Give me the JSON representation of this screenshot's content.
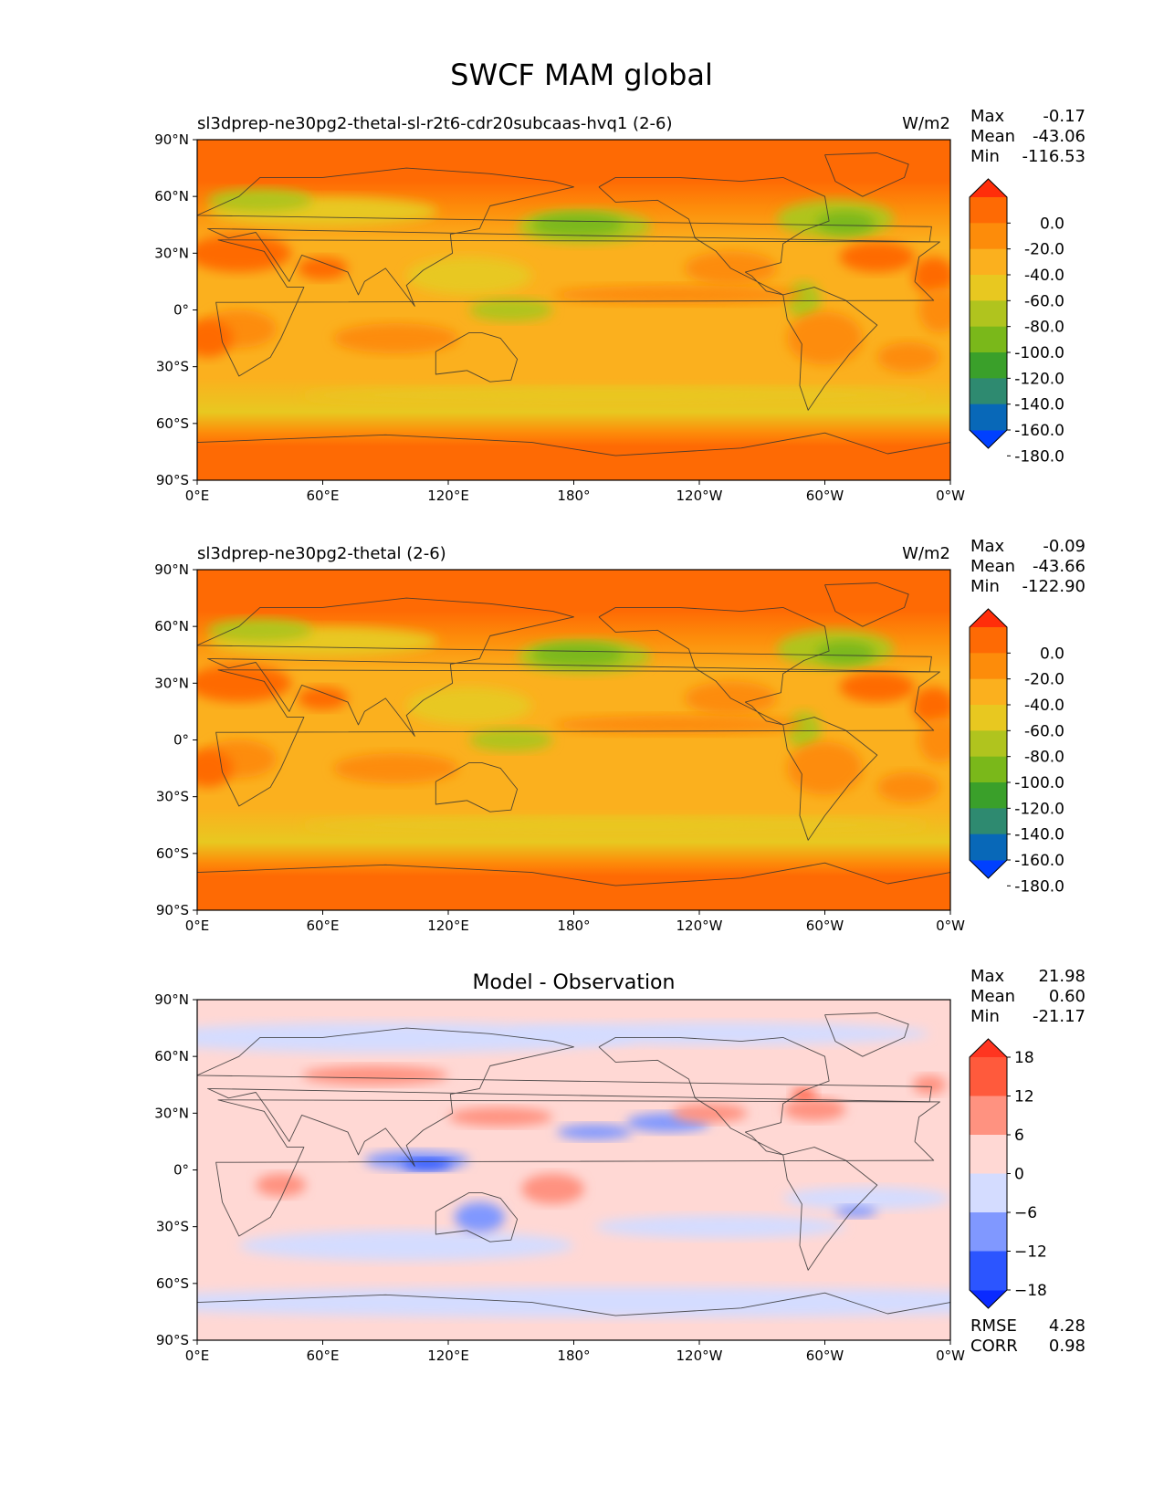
{
  "chart_data": {
    "type": "heatmap",
    "title": "SWCF MAM global",
    "x_ticks": [
      "0°E",
      "60°E",
      "120°E",
      "180°",
      "120°W",
      "60°W",
      "0°W"
    ],
    "y_ticks": [
      "90°N",
      "60°N",
      "30°N",
      "0°",
      "30°S",
      "60°S",
      "90°S"
    ],
    "xlim": [
      0,
      360
    ],
    "ylim": [
      -90,
      90
    ],
    "panels": [
      {
        "title": "sl3dprep-ne30pg2-thetal-sl-r2t6-cdr20subcaas-hvq1 (2-6)",
        "units": "W/m2",
        "stats": [
          {
            "label": "Max",
            "value": "-0.17"
          },
          {
            "label": "Mean",
            "value": "-43.06"
          },
          {
            "label": "Min",
            "value": "-116.53"
          }
        ],
        "colorbar": {
          "levels": [
            -180,
            -160,
            -140,
            -120,
            -100,
            -80,
            -60,
            -40,
            -20,
            0
          ],
          "tick_labels": [
            "0.0",
            "-20.0",
            "-40.0",
            "-60.0",
            "-80.0",
            "-100.0",
            "-120.0",
            "-140.0",
            "-160.0",
            "-180.0"
          ],
          "colors": [
            "#0040ff",
            "#0868b8",
            "#2e8a70",
            "#3aa02a",
            "#7ab81a",
            "#b0c41e",
            "#e8c820",
            "#fbb01e",
            "#fd8c0a",
            "#fe6a04",
            "#ff2e0a"
          ],
          "extend": "both"
        }
      },
      {
        "title": "sl3dprep-ne30pg2-thetal (2-6)",
        "units": "W/m2",
        "stats": [
          {
            "label": "Max",
            "value": "-0.09"
          },
          {
            "label": "Mean",
            "value": "-43.66"
          },
          {
            "label": "Min",
            "value": "-122.90"
          }
        ],
        "colorbar": {
          "levels": [
            -180,
            -160,
            -140,
            -120,
            -100,
            -80,
            -60,
            -40,
            -20,
            0
          ],
          "tick_labels": [
            "0.0",
            "-20.0",
            "-40.0",
            "-60.0",
            "-80.0",
            "-100.0",
            "-120.0",
            "-140.0",
            "-160.0",
            "-180.0"
          ],
          "colors": [
            "#0040ff",
            "#0868b8",
            "#2e8a70",
            "#3aa02a",
            "#7ab81a",
            "#b0c41e",
            "#e8c820",
            "#fbb01e",
            "#fd8c0a",
            "#fe6a04",
            "#ff2e0a"
          ],
          "extend": "both"
        }
      },
      {
        "title": "Model - Observation",
        "units": "",
        "stats": [
          {
            "label": "Max",
            "value": "21.98"
          },
          {
            "label": "Mean",
            "value": "0.60"
          },
          {
            "label": "Min",
            "value": "-21.17"
          }
        ],
        "extra_stats": [
          {
            "label": "RMSE",
            "value": "4.28"
          },
          {
            "label": "CORR",
            "value": "0.98"
          }
        ],
        "colorbar": {
          "levels": [
            -18,
            -12,
            -6,
            0,
            6,
            12,
            18
          ],
          "tick_labels": [
            "18",
            "12",
            "6",
            "0",
            "−6",
            "−12",
            "−18"
          ],
          "colors": [
            "#0a2aff",
            "#2c55ff",
            "#8098ff",
            "#d4dcff",
            "#ffd8d4",
            "#ff9280",
            "#ff5a3c",
            "#ff3520"
          ],
          "extend": "both"
        }
      }
    ]
  }
}
